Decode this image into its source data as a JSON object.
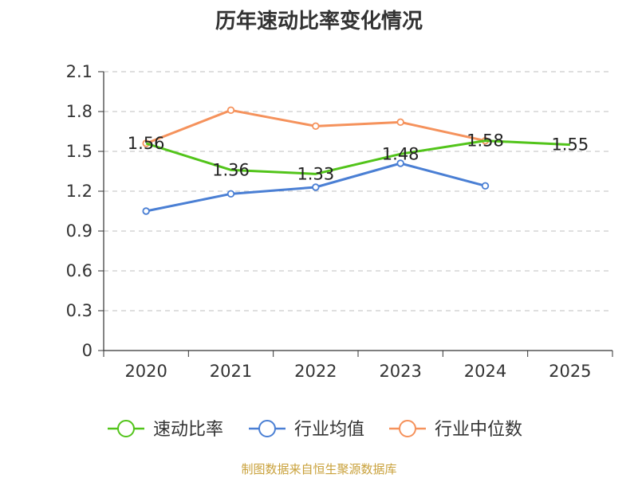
{
  "source_note": "制图数据来自恒生聚源数据库",
  "chart_data": {
    "type": "line",
    "title": "历年速动比率变化情况",
    "xlabel": "",
    "ylabel": "",
    "categories": [
      "2020",
      "2021",
      "2022",
      "2023",
      "2024",
      "2025"
    ],
    "ylim": [
      0,
      2.1
    ],
    "yticks": [
      0,
      0.3,
      0.6,
      0.9,
      1.2,
      1.5,
      1.8,
      2.1
    ],
    "ytick_labels": [
      "0",
      "0.3",
      "0.6",
      "0.9",
      "1.2",
      "1.5",
      "1.8",
      "2.1"
    ],
    "grid": true,
    "legend_position": "bottom",
    "series": [
      {
        "name": "速动比率",
        "color": "#52c41a",
        "values": [
          1.56,
          1.36,
          1.33,
          1.48,
          1.58,
          1.55
        ],
        "labels": [
          "1.56",
          "1.36",
          "1.33",
          "1.48",
          "1.58",
          "1.55"
        ],
        "show_markers": false
      },
      {
        "name": "行业均值",
        "color": "#4a7fd4",
        "values": [
          1.05,
          1.18,
          1.23,
          1.41,
          1.24,
          null
        ],
        "show_markers": true
      },
      {
        "name": "行业中位数",
        "color": "#f5925c",
        "values": [
          1.56,
          1.81,
          1.69,
          1.72,
          1.58,
          null
        ],
        "show_markers": true
      }
    ]
  }
}
